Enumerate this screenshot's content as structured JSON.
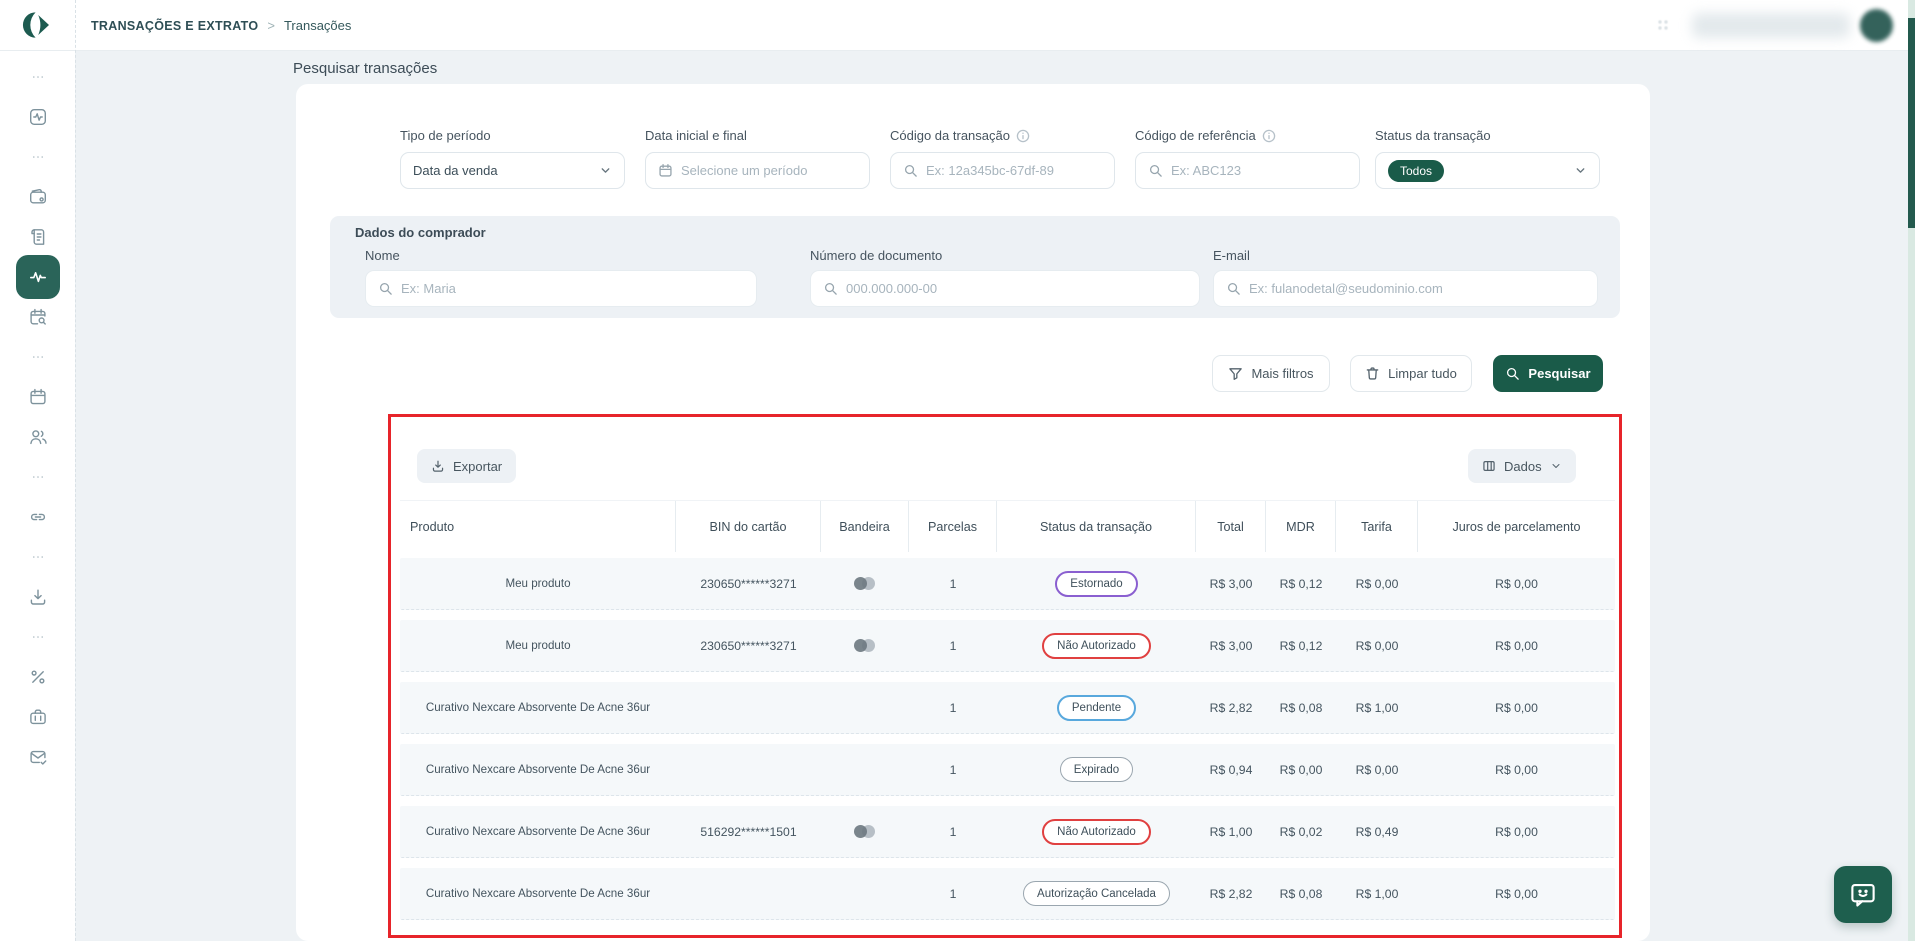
{
  "header": {
    "breadcrumb": {
      "section": "TRANSAÇÕES E EXTRATO",
      "separator": ">",
      "page": "Transações"
    }
  },
  "sidebar": {
    "items": [
      {
        "name": "more-1",
        "icon": "ellipsis"
      },
      {
        "name": "activity",
        "icon": "activity-square"
      },
      {
        "name": "more-2",
        "icon": "ellipsis"
      },
      {
        "name": "wallet",
        "icon": "wallet"
      },
      {
        "name": "statement",
        "icon": "receipt"
      },
      {
        "name": "transactions",
        "icon": "pulse",
        "active": true
      },
      {
        "name": "sales-search",
        "icon": "calendar-search"
      },
      {
        "name": "more-3",
        "icon": "ellipsis"
      },
      {
        "name": "agenda",
        "icon": "calendar"
      },
      {
        "name": "customers",
        "icon": "users"
      },
      {
        "name": "more-4",
        "icon": "ellipsis"
      },
      {
        "name": "payment-link",
        "icon": "link"
      },
      {
        "name": "more-5",
        "icon": "ellipsis"
      },
      {
        "name": "downloads",
        "icon": "download"
      },
      {
        "name": "more-6",
        "icon": "ellipsis"
      },
      {
        "name": "fees",
        "icon": "percent"
      },
      {
        "name": "business",
        "icon": "briefcase"
      },
      {
        "name": "mail",
        "icon": "mail-check"
      }
    ]
  },
  "search": {
    "title": "Pesquisar transações",
    "filters": {
      "period_type": {
        "label": "Tipo de período",
        "value": "Data da venda"
      },
      "date_range": {
        "label": "Data inicial e final",
        "placeholder": "Selecione um período"
      },
      "transaction_code": {
        "label": "Código da transação",
        "placeholder": "Ex: 12a345bc-67df-89"
      },
      "reference_code": {
        "label": "Código de referência",
        "placeholder": "Ex: ABC123"
      },
      "status": {
        "label": "Status da transação",
        "value": "Todos"
      }
    },
    "buyer": {
      "title": "Dados do comprador",
      "name": {
        "label": "Nome",
        "placeholder": "Ex: Maria"
      },
      "document": {
        "label": "Número de documento",
        "placeholder": "000.000.000-00"
      },
      "email": {
        "label": "E-mail",
        "placeholder": "Ex: fulanodetal@seudominio.com"
      }
    },
    "actions": {
      "more_filters": "Mais filtros",
      "clear_all": "Limpar tudo",
      "search": "Pesquisar"
    }
  },
  "table": {
    "toolbar": {
      "export": "Exportar",
      "columns": "Dados"
    },
    "columns": [
      "Produto",
      "BIN do cartão",
      "Bandeira",
      "Parcelas",
      "Status da transação",
      "Total",
      "MDR",
      "Tarifa",
      "Juros de parcelamento"
    ],
    "rows": [
      {
        "produto": "Meu produto",
        "bin": "230650******3271",
        "bandeira": true,
        "parcelas": "1",
        "status": "Estornado",
        "status_type": "estornado",
        "total": "R$ 3,00",
        "mdr": "R$ 0,12",
        "tarifa": "R$ 0,00",
        "juros": "R$ 0,00"
      },
      {
        "produto": "Meu produto",
        "bin": "230650******3271",
        "bandeira": true,
        "parcelas": "1",
        "status": "Não Autorizado",
        "status_type": "nao-autorizado",
        "total": "R$ 3,00",
        "mdr": "R$ 0,12",
        "tarifa": "R$ 0,00",
        "juros": "R$ 0,00"
      },
      {
        "produto": "Curativo Nexcare Absorvente De Acne 36ur",
        "bin": "",
        "bandeira": false,
        "parcelas": "1",
        "status": "Pendente",
        "status_type": "pendente",
        "total": "R$ 2,82",
        "mdr": "R$ 0,08",
        "tarifa": "R$ 1,00",
        "juros": "R$ 0,00"
      },
      {
        "produto": "Curativo Nexcare Absorvente De Acne 36ur",
        "bin": "",
        "bandeira": false,
        "parcelas": "1",
        "status": "Expirado",
        "status_type": "expirado",
        "total": "R$ 0,94",
        "mdr": "R$ 0,00",
        "tarifa": "R$ 0,00",
        "juros": "R$ 0,00"
      },
      {
        "produto": "Curativo Nexcare Absorvente De Acne 36ur",
        "bin": "516292******1501",
        "bandeira": true,
        "parcelas": "1",
        "status": "Não Autorizado",
        "status_type": "nao-autorizado",
        "total": "R$ 1,00",
        "mdr": "R$ 0,02",
        "tarifa": "R$ 0,49",
        "juros": "R$ 0,00"
      },
      {
        "produto": "Curativo Nexcare Absorvente De Acne 36ur",
        "bin": "",
        "bandeira": false,
        "parcelas": "1",
        "status": "Autorização Cancelada",
        "status_type": "cancelada",
        "total": "R$ 2,82",
        "mdr": "R$ 0,08",
        "tarifa": "R$ 1,00",
        "juros": "R$ 0,00"
      }
    ],
    "status_colors": {
      "estornado": "#8a5fd0",
      "nao-autorizado": "#e04040",
      "pendente": "#58a8dd",
      "expirado": "#9aa6af",
      "cancelada": "#9aa6af"
    }
  },
  "colors": {
    "accent_green": "#1a5b49",
    "sidebar_active": "#2a6459",
    "annotation_red": "#e7242a"
  },
  "annotation": {
    "type": "highlight-rectangle",
    "color": "#e7242a"
  }
}
